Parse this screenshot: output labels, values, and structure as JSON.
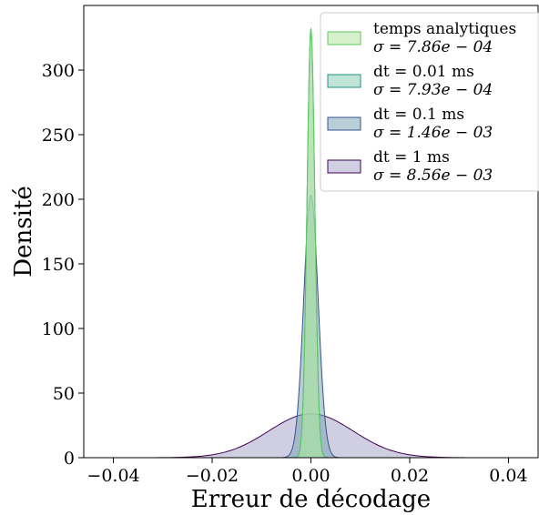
{
  "chart_data": {
    "type": "area",
    "title": "",
    "xlabel": "Erreur de décodage",
    "ylabel": "Densité",
    "xlim": [
      -0.046,
      0.046
    ],
    "ylim": [
      0,
      350
    ],
    "xticks": [
      -0.04,
      -0.02,
      0.0,
      0.02,
      0.04
    ],
    "xtick_labels": [
      "−0.04",
      "−0.02",
      "0.00",
      "0.02",
      "0.04"
    ],
    "yticks": [
      0,
      50,
      100,
      150,
      200,
      250,
      300
    ],
    "ytick_labels": [
      "0",
      "50",
      "100",
      "150",
      "200",
      "250",
      "300"
    ],
    "grid": false,
    "legend_position": "top-right",
    "series": [
      {
        "name": "temps analytiques",
        "sigma_label": "σ = 7.86e − 04",
        "mean": 0.0,
        "sigma": 0.000786,
        "peak": 332,
        "x_range": [
          -0.0032,
          0.0032
        ],
        "fill": "#b5e3a0",
        "stroke": "#5ec962"
      },
      {
        "name": "dt = 0.01 ms",
        "sigma_label": "σ = 7.93e − 04",
        "mean": 0.0,
        "sigma": 0.000793,
        "peak": 329,
        "x_range": [
          -0.0032,
          0.0032
        ],
        "fill": "#8ccfb4",
        "stroke": "#21918c"
      },
      {
        "name": "dt = 0.1 ms",
        "sigma_label": "σ = 1.46e − 03",
        "mean": 0.0,
        "sigma": 0.00146,
        "peak": 203,
        "x_range": [
          -0.0058,
          0.0058
        ],
        "fill": "#7fa7b8",
        "stroke": "#3b528b"
      },
      {
        "name": "dt = 1 ms",
        "sigma_label": "σ = 8.56e − 03",
        "mean": 0.0,
        "sigma": 0.00856,
        "peak": 34,
        "x_range": [
          -0.0425,
          0.0425
        ],
        "fill": "#a8a8c8",
        "stroke": "#440154"
      }
    ]
  }
}
